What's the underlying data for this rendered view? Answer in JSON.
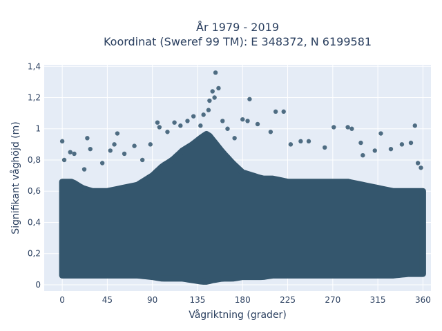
{
  "chart_data": {
    "type": "scatter",
    "title": "År 1979 - 2019",
    "subtitle": "Koordinat (Sweref 99 TM): E 348372, N 6199581",
    "xlabel": "Vågriktning (grader)",
    "ylabel": "Signifikant våghöjd (m)",
    "xlim": [
      -18,
      368
    ],
    "ylim": [
      -0.04,
      1.41
    ],
    "xticks": [
      0,
      45,
      90,
      135,
      180,
      225,
      270,
      315,
      360
    ],
    "xtick_labels": [
      "0",
      "45",
      "90",
      "135",
      "180",
      "225",
      "270",
      "315",
      "360"
    ],
    "yticks": [
      0,
      0.2,
      0.4,
      0.6,
      0.8,
      1,
      1.2,
      1.4
    ],
    "ytick_labels": [
      "0",
      "0,2",
      "0,4",
      "0,6",
      "0,8",
      "1",
      "1,2",
      "1,4"
    ],
    "grid": true,
    "legend": "none",
    "colors": {
      "marker": "#34566d",
      "plot_bg": "#e5ecf6",
      "grid": "#ffffff",
      "text": "#2a3f5f"
    },
    "dense_band": {
      "x": [
        0,
        10,
        20,
        30,
        45,
        60,
        75,
        90,
        100,
        110,
        120,
        130,
        140,
        145,
        150,
        160,
        170,
        180,
        190,
        200,
        210,
        225,
        240,
        255,
        270,
        285,
        300,
        315,
        330,
        345,
        360
      ],
      "y_low": [
        0.06,
        0.06,
        0.06,
        0.06,
        0.06,
        0.06,
        0.06,
        0.05,
        0.04,
        0.04,
        0.04,
        0.03,
        0.02,
        0.02,
        0.03,
        0.04,
        0.04,
        0.05,
        0.05,
        0.05,
        0.06,
        0.06,
        0.06,
        0.06,
        0.06,
        0.06,
        0.06,
        0.06,
        0.06,
        0.07,
        0.07
      ],
      "y_high": [
        0.66,
        0.66,
        0.62,
        0.6,
        0.6,
        0.62,
        0.64,
        0.7,
        0.76,
        0.8,
        0.86,
        0.9,
        0.95,
        0.97,
        0.93,
        0.85,
        0.78,
        0.72,
        0.7,
        0.68,
        0.68,
        0.66,
        0.66,
        0.66,
        0.66,
        0.66,
        0.64,
        0.62,
        0.6,
        0.6,
        0.6
      ]
    },
    "outliers": [
      {
        "x": 0,
        "y": 0.92
      },
      {
        "x": 2,
        "y": 0.8
      },
      {
        "x": 8,
        "y": 0.85
      },
      {
        "x": 12,
        "y": 0.84
      },
      {
        "x": 25,
        "y": 0.94
      },
      {
        "x": 28,
        "y": 0.87
      },
      {
        "x": 22,
        "y": 0.74
      },
      {
        "x": 40,
        "y": 0.78
      },
      {
        "x": 48,
        "y": 0.86
      },
      {
        "x": 52,
        "y": 0.9
      },
      {
        "x": 55,
        "y": 0.97
      },
      {
        "x": 62,
        "y": 0.84
      },
      {
        "x": 72,
        "y": 0.89
      },
      {
        "x": 80,
        "y": 0.8
      },
      {
        "x": 88,
        "y": 0.9
      },
      {
        "x": 95,
        "y": 1.04
      },
      {
        "x": 97,
        "y": 1.01
      },
      {
        "x": 105,
        "y": 0.98
      },
      {
        "x": 112,
        "y": 1.04
      },
      {
        "x": 118,
        "y": 1.02
      },
      {
        "x": 125,
        "y": 1.05
      },
      {
        "x": 131,
        "y": 1.08
      },
      {
        "x": 138,
        "y": 1.02
      },
      {
        "x": 141,
        "y": 1.09
      },
      {
        "x": 146,
        "y": 1.12
      },
      {
        "x": 147,
        "y": 1.18
      },
      {
        "x": 150,
        "y": 1.24
      },
      {
        "x": 152,
        "y": 1.2
      },
      {
        "x": 153,
        "y": 1.36
      },
      {
        "x": 156,
        "y": 1.26
      },
      {
        "x": 160,
        "y": 1.05
      },
      {
        "x": 165,
        "y": 1.0
      },
      {
        "x": 172,
        "y": 0.94
      },
      {
        "x": 180,
        "y": 1.06
      },
      {
        "x": 185,
        "y": 1.05
      },
      {
        "x": 187,
        "y": 1.19
      },
      {
        "x": 195,
        "y": 1.03
      },
      {
        "x": 208,
        "y": 0.98
      },
      {
        "x": 213,
        "y": 1.11
      },
      {
        "x": 221,
        "y": 1.11
      },
      {
        "x": 228,
        "y": 0.9
      },
      {
        "x": 238,
        "y": 0.92
      },
      {
        "x": 246,
        "y": 0.92
      },
      {
        "x": 262,
        "y": 0.88
      },
      {
        "x": 271,
        "y": 1.01
      },
      {
        "x": 285,
        "y": 1.01
      },
      {
        "x": 289,
        "y": 1.0
      },
      {
        "x": 298,
        "y": 0.91
      },
      {
        "x": 300,
        "y": 0.83
      },
      {
        "x": 312,
        "y": 0.86
      },
      {
        "x": 318,
        "y": 0.97
      },
      {
        "x": 328,
        "y": 0.87
      },
      {
        "x": 339,
        "y": 0.9
      },
      {
        "x": 348,
        "y": 0.91
      },
      {
        "x": 352,
        "y": 1.02
      },
      {
        "x": 355,
        "y": 0.78
      },
      {
        "x": 358,
        "y": 0.75
      }
    ]
  }
}
